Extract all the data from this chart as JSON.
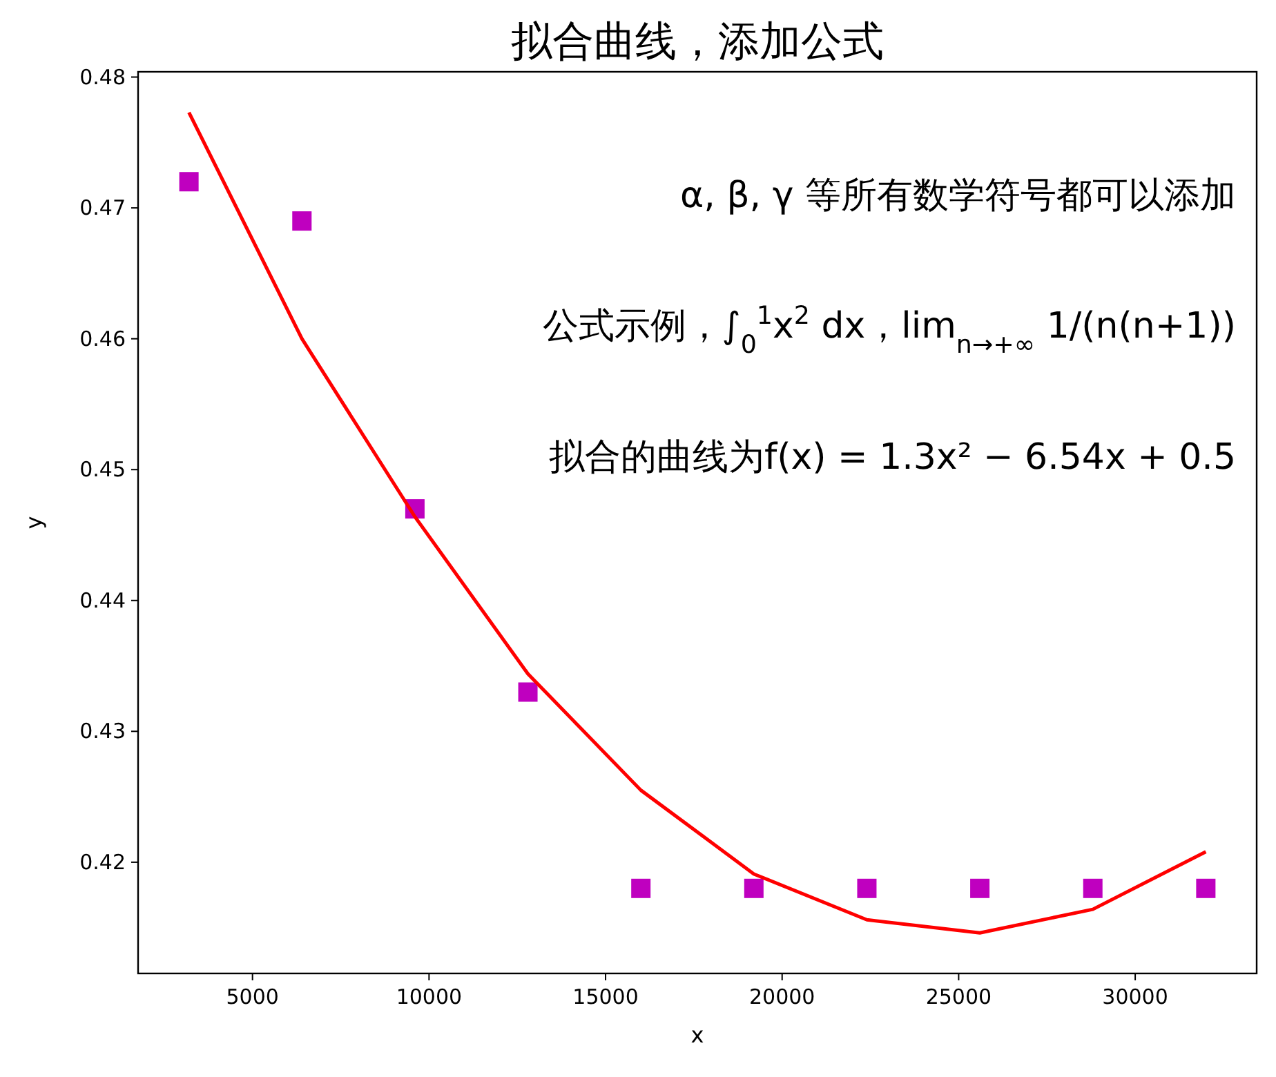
{
  "chart_data": {
    "type": "scatter",
    "title": "拟合曲线，添加公式",
    "xlabel": "x",
    "ylabel": "y",
    "x": [
      3200,
      6400,
      9600,
      12800,
      16000,
      19200,
      22400,
      25600,
      28800,
      32000
    ],
    "series": [
      {
        "color": "#bf00bf",
        "marker": "square",
        "values": [
          0.472,
          0.469,
          0.447,
          0.433,
          0.418,
          0.418,
          0.418,
          0.418,
          0.418,
          0.418
        ]
      },
      {
        "type": "line",
        "color": "#ff0000",
        "marker": "none",
        "line_style": "solid",
        "values": [
          0.4773,
          0.46,
          0.4464,
          0.4344,
          0.4255,
          0.4191,
          0.4156,
          0.4146,
          0.4164,
          0.4208
        ]
      }
    ],
    "xlim": [
      1760,
      33440
    ],
    "ylim": [
      0.4115,
      0.4804
    ],
    "xticks": [
      5000,
      10000,
      15000,
      20000,
      25000,
      30000
    ],
    "yticks": [
      0.42,
      0.43,
      0.44,
      0.45,
      0.46,
      0.47,
      0.48
    ],
    "grid": false,
    "annotations": [
      "α, β, γ 等所有数学符号都可以添加",
      "公式示例，∫$_{0}$$^{1}$x$^{2}$ dx，lim$_{n→+∞}$ 1/(n(n+1))",
      "拟合的曲线为f(x) = 1.3x² − 6.54x + 0.5"
    ]
  }
}
